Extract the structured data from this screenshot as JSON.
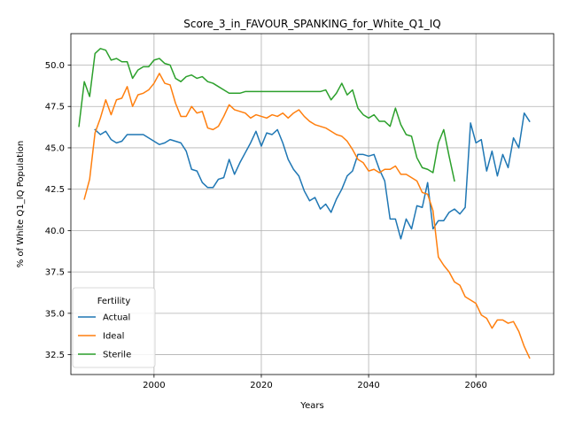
{
  "chart_data": {
    "type": "line",
    "title": "Score_3_in_FAVOUR_SPANKING_for_White_Q1_IQ",
    "xlabel": "Years",
    "ylabel": "% of White Q1_IQ Population",
    "xlim": [
      1984.5,
      2074.5
    ],
    "ylim": [
      31.3,
      51.9
    ],
    "xticks": [
      2000,
      2020,
      2040,
      2060
    ],
    "yticks": [
      32.5,
      35.0,
      37.5,
      40.0,
      42.5,
      45.0,
      47.5,
      50.0
    ],
    "xtick_labels": [
      "2000",
      "2020",
      "2040",
      "2060"
    ],
    "ytick_labels": [
      "32.5",
      "35.0",
      "37.5",
      "40.0",
      "42.5",
      "45.0",
      "47.5",
      "50.0"
    ],
    "grid": true,
    "legend": {
      "title": "Fertility",
      "placement": "lower-left",
      "entries": [
        "Actual",
        "Ideal",
        "Sterile"
      ]
    },
    "series": [
      {
        "name": "Actual",
        "color": "#1f77b4",
        "x": [
          1989,
          1990,
          1991,
          1992,
          1993,
          1994,
          1995,
          1996,
          1997,
          1998,
          1999,
          2000,
          2001,
          2002,
          2003,
          2004,
          2005,
          2006,
          2007,
          2008,
          2009,
          2010,
          2011,
          2012,
          2013,
          2014,
          2015,
          2016,
          2017,
          2018,
          2019,
          2020,
          2021,
          2022,
          2023,
          2024,
          2025,
          2026,
          2027,
          2028,
          2029,
          2030,
          2031,
          2032,
          2033,
          2034,
          2035,
          2036,
          2037,
          2038,
          2039,
          2040,
          2041,
          2042,
          2043,
          2044,
          2045,
          2046,
          2047,
          2048,
          2049,
          2050,
          2051,
          2052,
          2053,
          2054,
          2055,
          2056,
          2057,
          2058,
          2059,
          2060,
          2061,
          2062,
          2063,
          2064,
          2065,
          2066,
          2067,
          2068,
          2069,
          2070
        ],
        "y": [
          46.1,
          45.8,
          46.0,
          45.5,
          45.3,
          45.4,
          45.8,
          45.8,
          45.8,
          45.8,
          45.6,
          45.4,
          45.2,
          45.3,
          45.5,
          45.4,
          45.3,
          44.8,
          43.7,
          43.6,
          42.9,
          42.6,
          42.6,
          43.1,
          43.2,
          44.3,
          43.4,
          44.1,
          44.7,
          45.3,
          46.0,
          45.1,
          45.9,
          45.8,
          46.1,
          45.3,
          44.3,
          43.7,
          43.3,
          42.4,
          41.8,
          42.0,
          41.3,
          41.6,
          41.1,
          41.9,
          42.5,
          43.3,
          43.6,
          44.6,
          44.6,
          44.5,
          44.6,
          43.7,
          43.0,
          40.7,
          40.7,
          39.5,
          40.7,
          40.1,
          41.5,
          41.4,
          42.9,
          40.1,
          40.6,
          40.6,
          41.1,
          41.3,
          41.0,
          41.4,
          46.5,
          45.3,
          45.5,
          43.6,
          44.8,
          43.3,
          44.6,
          43.8,
          45.6,
          45.0,
          47.1,
          46.6
        ]
      },
      {
        "name": "Ideal",
        "color": "#ff7f0e",
        "x": [
          1987,
          1988,
          1989,
          1990,
          1991,
          1992,
          1993,
          1994,
          1995,
          1996,
          1997,
          1998,
          1999,
          2000,
          2001,
          2002,
          2003,
          2004,
          2005,
          2006,
          2007,
          2008,
          2009,
          2010,
          2011,
          2012,
          2013,
          2014,
          2015,
          2016,
          2017,
          2018,
          2019,
          2020,
          2021,
          2022,
          2023,
          2024,
          2025,
          2026,
          2027,
          2028,
          2029,
          2030,
          2031,
          2032,
          2033,
          2034,
          2035,
          2036,
          2037,
          2038,
          2039,
          2040,
          2041,
          2042,
          2043,
          2044,
          2045,
          2046,
          2047,
          2048,
          2049,
          2050,
          2051,
          2052,
          2053,
          2054,
          2055,
          2056,
          2057,
          2058,
          2059,
          2060,
          2061,
          2062,
          2063,
          2064,
          2065,
          2066,
          2067,
          2068,
          2069,
          2070
        ],
        "y": [
          41.9,
          43.1,
          45.9,
          46.8,
          47.9,
          47.0,
          47.9,
          48.0,
          48.7,
          47.5,
          48.2,
          48.3,
          48.5,
          48.9,
          49.5,
          48.9,
          48.8,
          47.7,
          46.9,
          46.9,
          47.5,
          47.1,
          47.2,
          46.2,
          46.1,
          46.3,
          46.9,
          47.6,
          47.3,
          47.2,
          47.1,
          46.8,
          47.0,
          46.9,
          46.8,
          47.0,
          46.9,
          47.1,
          46.8,
          47.1,
          47.3,
          46.9,
          46.6,
          46.4,
          46.3,
          46.2,
          46.0,
          45.8,
          45.7,
          45.4,
          44.9,
          44.3,
          44.1,
          43.6,
          43.7,
          43.5,
          43.7,
          43.7,
          43.9,
          43.4,
          43.4,
          43.2,
          43.0,
          42.3,
          42.2,
          41.2,
          38.4,
          37.9,
          37.5,
          36.9,
          36.7,
          36.0,
          35.8,
          35.6,
          34.9,
          34.7,
          34.1,
          34.6,
          34.6,
          34.4,
          34.5,
          33.9,
          33.0,
          32.3
        ]
      },
      {
        "name": "Sterile",
        "color": "#2ca02c",
        "x": [
          1986,
          1987,
          1988,
          1989,
          1990,
          1991,
          1992,
          1993,
          1994,
          1995,
          1996,
          1997,
          1998,
          1999,
          2000,
          2001,
          2002,
          2003,
          2004,
          2005,
          2006,
          2007,
          2008,
          2009,
          2010,
          2011,
          2012,
          2013,
          2014,
          2015,
          2016,
          2017,
          2018,
          2019,
          2020,
          2021,
          2022,
          2023,
          2024,
          2025,
          2026,
          2027,
          2028,
          2029,
          2030,
          2031,
          2032,
          2033,
          2034,
          2035,
          2036,
          2037,
          2038,
          2039,
          2040,
          2041,
          2042,
          2043,
          2044,
          2045,
          2046,
          2047,
          2048,
          2049,
          2050,
          2051,
          2052,
          2053,
          2054,
          2055,
          2056
        ],
        "y": [
          46.3,
          49.0,
          48.1,
          50.7,
          51.0,
          50.9,
          50.3,
          50.4,
          50.2,
          50.2,
          49.2,
          49.7,
          49.9,
          49.9,
          50.3,
          50.4,
          50.1,
          50.0,
          49.2,
          49.0,
          49.3,
          49.4,
          49.2,
          49.3,
          49.0,
          48.9,
          48.7,
          48.5,
          48.3,
          48.3,
          48.3,
          48.4,
          48.4,
          48.4,
          48.4,
          48.4,
          48.4,
          48.4,
          48.4,
          48.4,
          48.4,
          48.4,
          48.4,
          48.4,
          48.4,
          48.4,
          48.5,
          47.9,
          48.3,
          48.9,
          48.2,
          48.5,
          47.4,
          47.0,
          46.8,
          47.0,
          46.6,
          46.6,
          46.3,
          47.4,
          46.4,
          45.8,
          45.7,
          44.4,
          43.8,
          43.7,
          43.5,
          45.3,
          46.1,
          44.5,
          43.0
        ]
      }
    ]
  }
}
